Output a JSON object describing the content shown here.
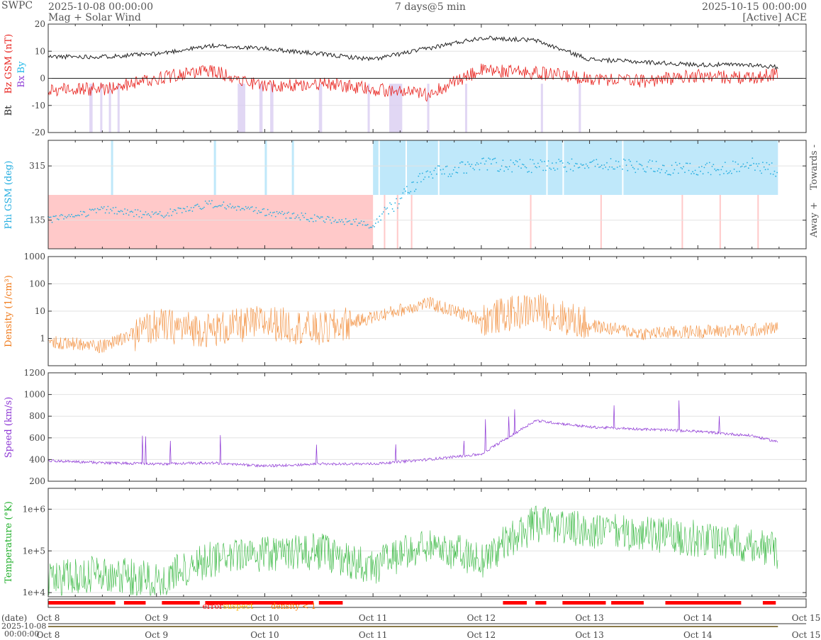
{
  "header": {
    "source": "SWPC",
    "start": "2025-10-08 00:00:00",
    "subtitle": "Mag + Solar Wind",
    "span": "7 days@5 min",
    "end": "2025-10-15 00:00:00",
    "spacecraft": "[Active] ACE"
  },
  "colors": {
    "bt": "#222222",
    "bz": "#e8211c",
    "by": "#1fb8e8",
    "bx": "#8f3fd6",
    "phi": "#26aee0",
    "density": "#f07a1a",
    "speed": "#8c35d4",
    "temp": "#22b02c",
    "towards_fill": "#bfe8fa",
    "away_fill": "#ffc9c9",
    "error": "#ff0000",
    "suspect": "#ffb400",
    "lowdensity": "#ff7a00"
  },
  "chart_data": [
    {
      "type": "line",
      "panel": "mag",
      "ylabel_parts": [
        "Bt",
        "Bz GSM (nT)",
        "Bx",
        "By"
      ],
      "ylim": [
        -20,
        20
      ],
      "yticks": [
        "20",
        "10",
        "0",
        "-10",
        "-20"
      ],
      "x": [
        "Oct 8",
        "Oct 8 12h",
        "Oct 9",
        "Oct 9 12h",
        "Oct 10",
        "Oct 10 12h",
        "Oct 11",
        "Oct 11 12h",
        "Oct 12",
        "Oct 12 12h",
        "Oct 13",
        "Oct 13 12h",
        "Oct 14",
        "Oct 14 12h",
        "Oct 14 18h"
      ],
      "series": [
        {
          "name": "Bt",
          "values": [
            8,
            8,
            9,
            12,
            11,
            9,
            7,
            11,
            15,
            14,
            7,
            6,
            5,
            5,
            4
          ]
        },
        {
          "name": "Bz GSM",
          "values": [
            -4,
            -4,
            0,
            3,
            -3,
            -2,
            -4,
            -6,
            3,
            2,
            0,
            -1,
            1,
            0,
            2
          ]
        }
      ]
    },
    {
      "type": "scatter",
      "panel": "phi",
      "ylabel": "Phi GSM (deg)",
      "yticks": [
        "315",
        "135"
      ],
      "sector_labels": [
        "Towards -",
        "Away +"
      ],
      "x": [
        "Oct 8",
        "Oct 8 12h",
        "Oct 9",
        "Oct 9 12h",
        "Oct 10",
        "Oct 10 12h",
        "Oct 11",
        "Oct 11 12h",
        "Oct 12",
        "Oct 12 12h",
        "Oct 13",
        "Oct 13 12h",
        "Oct 14",
        "Oct 14 12h",
        "Oct 14 18h"
      ],
      "values": [
        135,
        170,
        150,
        190,
        160,
        140,
        120,
        290,
        320,
        315,
        320,
        315,
        300,
        320,
        300
      ]
    },
    {
      "type": "line",
      "panel": "density",
      "ylabel": "Density (1/cm³)",
      "scale": "log",
      "yticks": [
        "1000",
        "100",
        "10",
        "1"
      ],
      "x": [
        "Oct 8",
        "Oct 8 12h",
        "Oct 9",
        "Oct 9 12h",
        "Oct 10",
        "Oct 10 12h",
        "Oct 11",
        "Oct 11 12h",
        "Oct 12",
        "Oct 12 12h",
        "Oct 13",
        "Oct 13 12h",
        "Oct 14",
        "Oct 14 12h",
        "Oct 14 18h"
      ],
      "values": [
        0.8,
        0.5,
        3,
        2,
        4,
        2,
        6,
        20,
        5,
        12,
        3,
        1.5,
        1.8,
        2,
        2.5
      ]
    },
    {
      "type": "line",
      "panel": "speed",
      "ylabel": "Speed (km/s)",
      "ylim": [
        200,
        1200
      ],
      "yticks": [
        "1200",
        "1000",
        "800",
        "600",
        "400",
        "200"
      ],
      "x": [
        "Oct 8",
        "Oct 8 12h",
        "Oct 9",
        "Oct 9 12h",
        "Oct 10",
        "Oct 10 12h",
        "Oct 11",
        "Oct 11 12h",
        "Oct 12",
        "Oct 12 12h",
        "Oct 13",
        "Oct 13 12h",
        "Oct 14",
        "Oct 14 12h",
        "Oct 14 18h"
      ],
      "values": [
        390,
        370,
        360,
        370,
        340,
        360,
        360,
        400,
        450,
        760,
        700,
        680,
        660,
        620,
        560
      ]
    },
    {
      "type": "line",
      "panel": "temperature",
      "ylabel": "Temperature (°K)",
      "scale": "log",
      "yticks": [
        "1e+6",
        "1e+5",
        "1e+4"
      ],
      "x": [
        "Oct 8",
        "Oct 8 12h",
        "Oct 9",
        "Oct 9 12h",
        "Oct 10",
        "Oct 10 12h",
        "Oct 11",
        "Oct 11 12h",
        "Oct 12",
        "Oct 12 12h",
        "Oct 13",
        "Oct 13 12h",
        "Oct 14",
        "Oct 14 12h",
        "Oct 14 18h"
      ],
      "values": [
        20000,
        30000,
        20000,
        60000,
        80000,
        100000,
        40000,
        150000,
        60000,
        450000,
        300000,
        250000,
        200000,
        150000,
        100000
      ]
    }
  ],
  "quality_legend": {
    "error": "error",
    "suspect": "suspect",
    "density": "density < 1"
  },
  "xaxis": {
    "labels": [
      "Oct 8",
      "Oct 9",
      "Oct 10",
      "Oct 11",
      "Oct 12",
      "Oct 13",
      "Oct 14",
      "Oct 15"
    ],
    "date_label": "(date)",
    "start_date": "2025-10-08",
    "start_time": "00:00:00"
  }
}
